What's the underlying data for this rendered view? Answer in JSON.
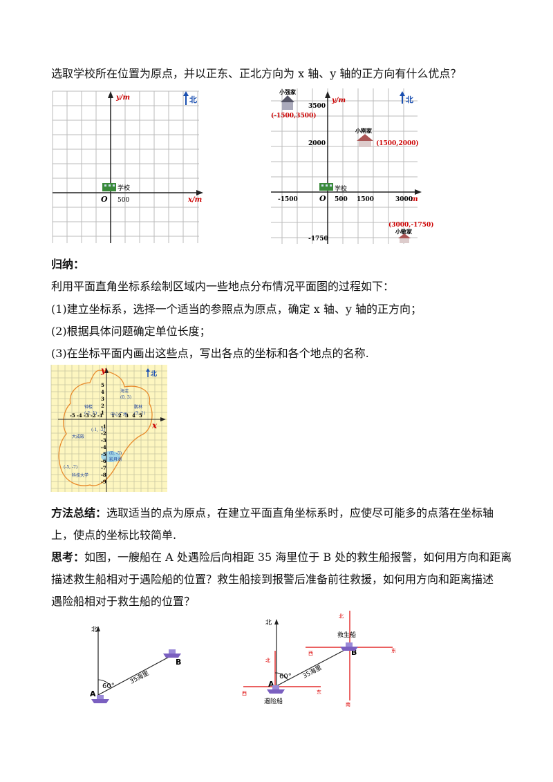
{
  "question": "选取学校所在位置为原点，并以正东、正北方向为 x 轴、y 轴的正方向有什么优点？",
  "grid1": {
    "y_label": "y/m",
    "x_label": "x/m",
    "origin": "O",
    "north": "北",
    "school_label": "学校",
    "tick_500": "500"
  },
  "grid2": {
    "y_label": "y/m",
    "x_label": "m",
    "origin": "O",
    "north": "北",
    "school_label": "学校",
    "x_ticks": [
      "-1500",
      "500",
      "1500",
      "3000"
    ],
    "y_ticks": [
      "3500",
      "2000",
      "-1750"
    ],
    "houses": [
      {
        "name": "小强家",
        "coord": "(-1500,3500)"
      },
      {
        "name": "小刚家",
        "coord": "(1500,2000)"
      },
      {
        "name": "小敏家",
        "coord": "(3000,-1750)"
      }
    ]
  },
  "summary": {
    "heading": "归纳：",
    "intro": "利用平面直角坐标系绘制区域内一些地点分布情况平面图的过程如下：",
    "steps": [
      "(1)建立坐标系，选择一个适当的参照点为原点，确定 x 轴、y 轴的正方向；",
      "(2)根据具体问题确定单位长度；",
      "(3)在坐标平面内画出这些点，写出各点的坐标和各个地点的名称."
    ]
  },
  "map": {
    "y_label": "y",
    "x_label": "x",
    "north": "北",
    "x_ticks": [
      "-5",
      "-4",
      "-3",
      "-2",
      "-1",
      "1",
      "2",
      "3",
      "4",
      "5"
    ],
    "y_ticks": [
      "5",
      "4",
      "3",
      "2",
      "1",
      "-1",
      "-2",
      "-3",
      "-4",
      "-5",
      "-6",
      "-7",
      "-8",
      "-9"
    ],
    "places": [
      {
        "name": "海淀",
        "coord": "(0, 3)"
      },
      {
        "name": "钟楼",
        "coord": "(-2, 1)"
      },
      {
        "name": "中心广场",
        "coord": ""
      },
      {
        "name": "鹏林",
        "coord": "(3, 1)"
      },
      {
        "name": "",
        "coord": "(-1, -2)"
      },
      {
        "name": "大成殿",
        "coord": ""
      },
      {
        "name": "影月湖",
        "coord": "(0, -5)"
      },
      {
        "name": "科技大学",
        "coord": "(-5, -7)"
      }
    ]
  },
  "method": {
    "label": "方法总结：",
    "line1": "选取适当的点为原点，在建立平面直角坐标系时，应使尽可能多的点落在坐标轴",
    "line2": "上，使点的坐标比较简单."
  },
  "think": {
    "label": "思考：",
    "line1": "如图，一艘船在 A 处遇险后向相距 35 海里位于 B 处的救生船报警，如何用方向和距离",
    "line2": "描述救生船相对于遇险船的位置？救生船接到报警后准备前往救援，如何用方向和距离描述",
    "line3": "遇险船相对于救生船的位置？"
  },
  "fig1": {
    "north": "北",
    "angle": "60°",
    "distance": "35海里",
    "A": "A",
    "B": "B"
  },
  "fig2": {
    "north": "北",
    "angle": "60°",
    "distance": "35海里",
    "A": "A",
    "B": "B",
    "A_name": "遇险船",
    "B_name": "救生船",
    "A_north": "北",
    "A_west": "西",
    "A_east": "东",
    "B_north": "北",
    "B_west": "西",
    "B_east": "东",
    "B_south": "南"
  }
}
